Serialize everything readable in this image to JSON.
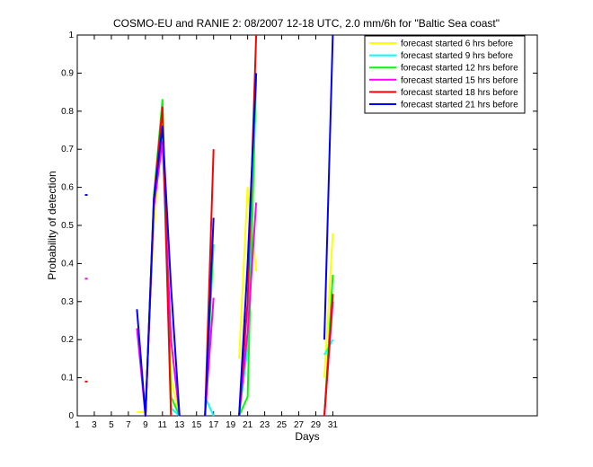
{
  "chart_data": {
    "type": "line",
    "title": "COSMO-EU and RANIE 2: 08/2007 12-18 UTC, 2.0 mm/6h for \"Baltic Sea coast\"",
    "xlabel": "Days",
    "ylabel": "Probability of detection",
    "xlim": [
      1,
      55
    ],
    "ylim": [
      0,
      1
    ],
    "xticks": [
      1,
      3,
      5,
      7,
      9,
      11,
      13,
      15,
      17,
      19,
      21,
      23,
      25,
      27,
      29,
      31
    ],
    "yticks": [
      0,
      0.1,
      0.2,
      0.3,
      0.4,
      0.5,
      0.6,
      0.7,
      0.8,
      0.9,
      1
    ],
    "ytick_labels": [
      "0",
      "0.1",
      "0.2",
      "0.3",
      "0.4",
      "0.5",
      "0.6",
      "0.7",
      "0.8",
      "0.9",
      "1"
    ],
    "grid": false,
    "legend_position": "top-right",
    "series": [
      {
        "name": "forecast started 6 hrs before",
        "color": "#ffff00",
        "segments": [
          [
            [
              8,
              0.01
            ],
            [
              9,
              0.01
            ]
          ],
          [
            [
              9,
              0.02
            ],
            [
              10,
              0.5
            ],
            [
              11,
              0.78
            ],
            [
              12,
              0.1
            ],
            [
              13,
              0.0
            ]
          ],
          [
            [
              16,
              0.01
            ],
            [
              17,
              0.3
            ]
          ],
          [
            [
              20,
              0.15
            ],
            [
              21,
              0.6
            ],
            [
              22,
              0.38
            ]
          ],
          [
            [
              30,
              0.1
            ],
            [
              31,
              0.48
            ]
          ]
        ]
      },
      {
        "name": "forecast started 9 hrs before",
        "color": "#00ffff",
        "segments": [
          [
            [
              9,
              0.0
            ],
            [
              10,
              0.56
            ],
            [
              11,
              0.76
            ],
            [
              12,
              0.02
            ],
            [
              13,
              0.0
            ]
          ],
          [
            [
              16,
              0.05
            ],
            [
              17,
              0.0
            ]
          ],
          [
            [
              20,
              0.0
            ],
            [
              21,
              0.18
            ],
            [
              22,
              0.88
            ]
          ],
          [
            [
              30,
              0.16
            ],
            [
              31,
              0.2
            ]
          ]
        ]
      },
      {
        "name": "forecast started 12 hrs before",
        "color": "#00ff00",
        "segments": [
          [
            [
              9,
              0.0
            ],
            [
              10,
              0.58
            ],
            [
              11,
              0.83
            ],
            [
              12,
              0.05
            ],
            [
              13,
              0.0
            ]
          ],
          [
            [
              16,
              0.0
            ],
            [
              17,
              0.45
            ]
          ],
          [
            [
              20,
              0.0
            ],
            [
              21,
              0.05
            ],
            [
              22,
              0.9
            ]
          ],
          [
            [
              30,
              0.0
            ],
            [
              31,
              0.37
            ]
          ]
        ]
      },
      {
        "name": "forecast started 15 hrs before",
        "color": "#ff00ff",
        "points": [
          [
            2,
            0.36
          ]
        ],
        "segments": [
          [
            [
              8,
              0.23
            ],
            [
              9,
              0.0
            ],
            [
              10,
              0.55
            ],
            [
              11,
              0.72
            ],
            [
              12,
              0.2
            ],
            [
              13,
              0.0
            ]
          ],
          [
            [
              16,
              0.0
            ],
            [
              17,
              0.31
            ]
          ],
          [
            [
              20,
              0.0
            ],
            [
              21,
              0.22
            ],
            [
              22,
              0.56
            ]
          ],
          [
            [
              30,
              0.0
            ],
            [
              31,
              0.3
            ]
          ]
        ]
      },
      {
        "name": "forecast started 18 hrs before",
        "color": "#ff0000",
        "points": [
          [
            2,
            0.09
          ]
        ],
        "segments": [
          [
            [
              9,
              0.0
            ],
            [
              10,
              0.57
            ],
            [
              11,
              0.81
            ],
            [
              12,
              0.0
            ]
          ],
          [
            [
              16,
              0.0
            ],
            [
              17,
              0.7
            ]
          ],
          [
            [
              20,
              0.0
            ],
            [
              21,
              0.3
            ],
            [
              22,
              1.0
            ]
          ],
          [
            [
              30,
              0.0
            ],
            [
              31,
              0.32
            ]
          ]
        ]
      },
      {
        "name": "forecast started 21 hrs before",
        "color": "#0000ff",
        "points": [
          [
            2,
            0.58
          ]
        ],
        "segments": [
          [
            [
              8,
              0.28
            ],
            [
              9,
              0.0
            ],
            [
              10,
              0.57
            ],
            [
              11,
              0.76
            ],
            [
              12,
              0.34
            ],
            [
              13,
              0.0
            ]
          ],
          [
            [
              16,
              0.0
            ],
            [
              17,
              0.52
            ]
          ],
          [
            [
              20,
              0.0
            ],
            [
              21,
              0.4
            ],
            [
              22,
              0.9
            ]
          ],
          [
            [
              30,
              0.2
            ],
            [
              31,
              1.0
            ]
          ]
        ]
      }
    ]
  }
}
